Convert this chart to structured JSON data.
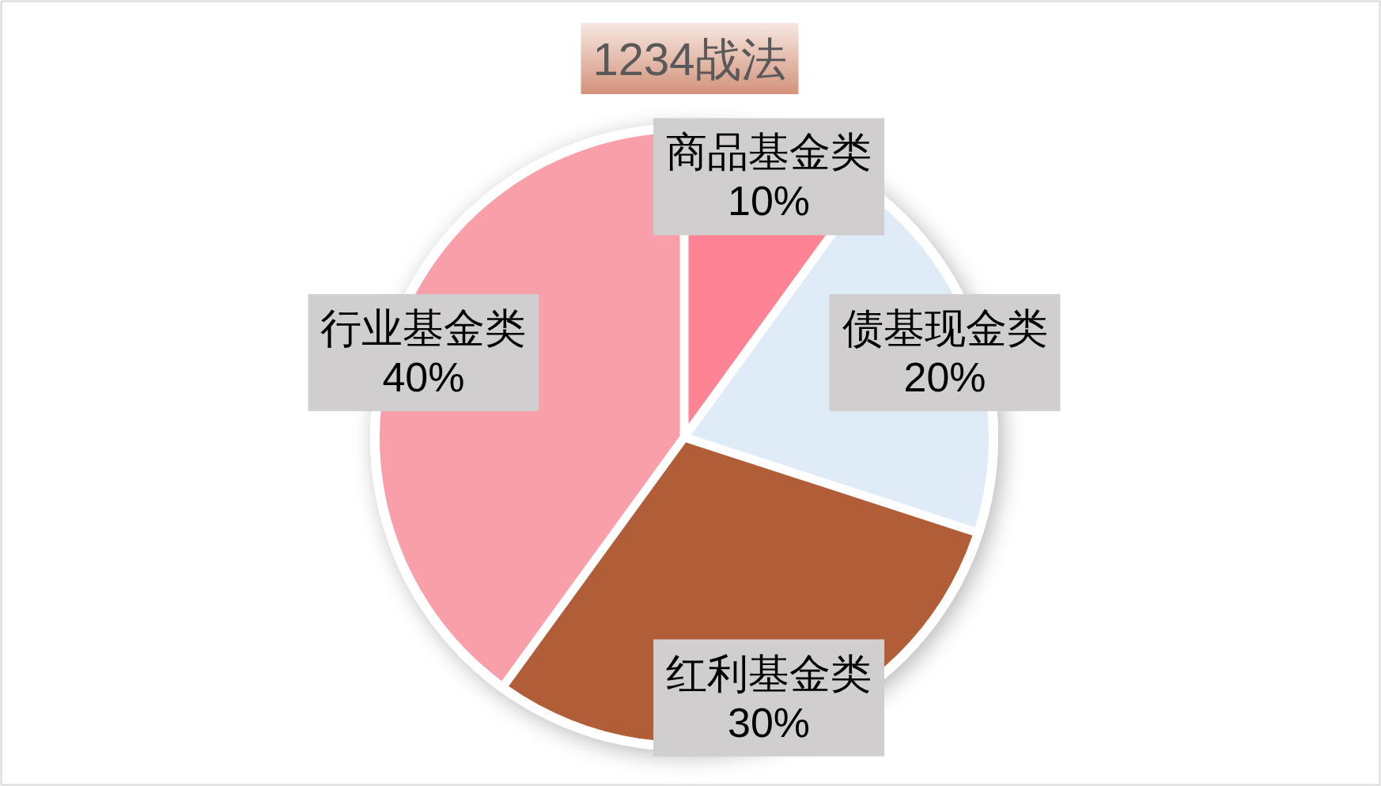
{
  "chart_data": {
    "type": "pie",
    "title": "1234战法",
    "categories": [
      "商品基金类",
      "债基现金类",
      "红利基金类",
      "行业基金类"
    ],
    "values": [
      10,
      20,
      30,
      40
    ],
    "value_labels": [
      "10%",
      "20%",
      "30%",
      "40%"
    ],
    "colors": [
      "#fe8394",
      "#dfebf7",
      "#b05d38",
      "#f99fa9"
    ]
  }
}
